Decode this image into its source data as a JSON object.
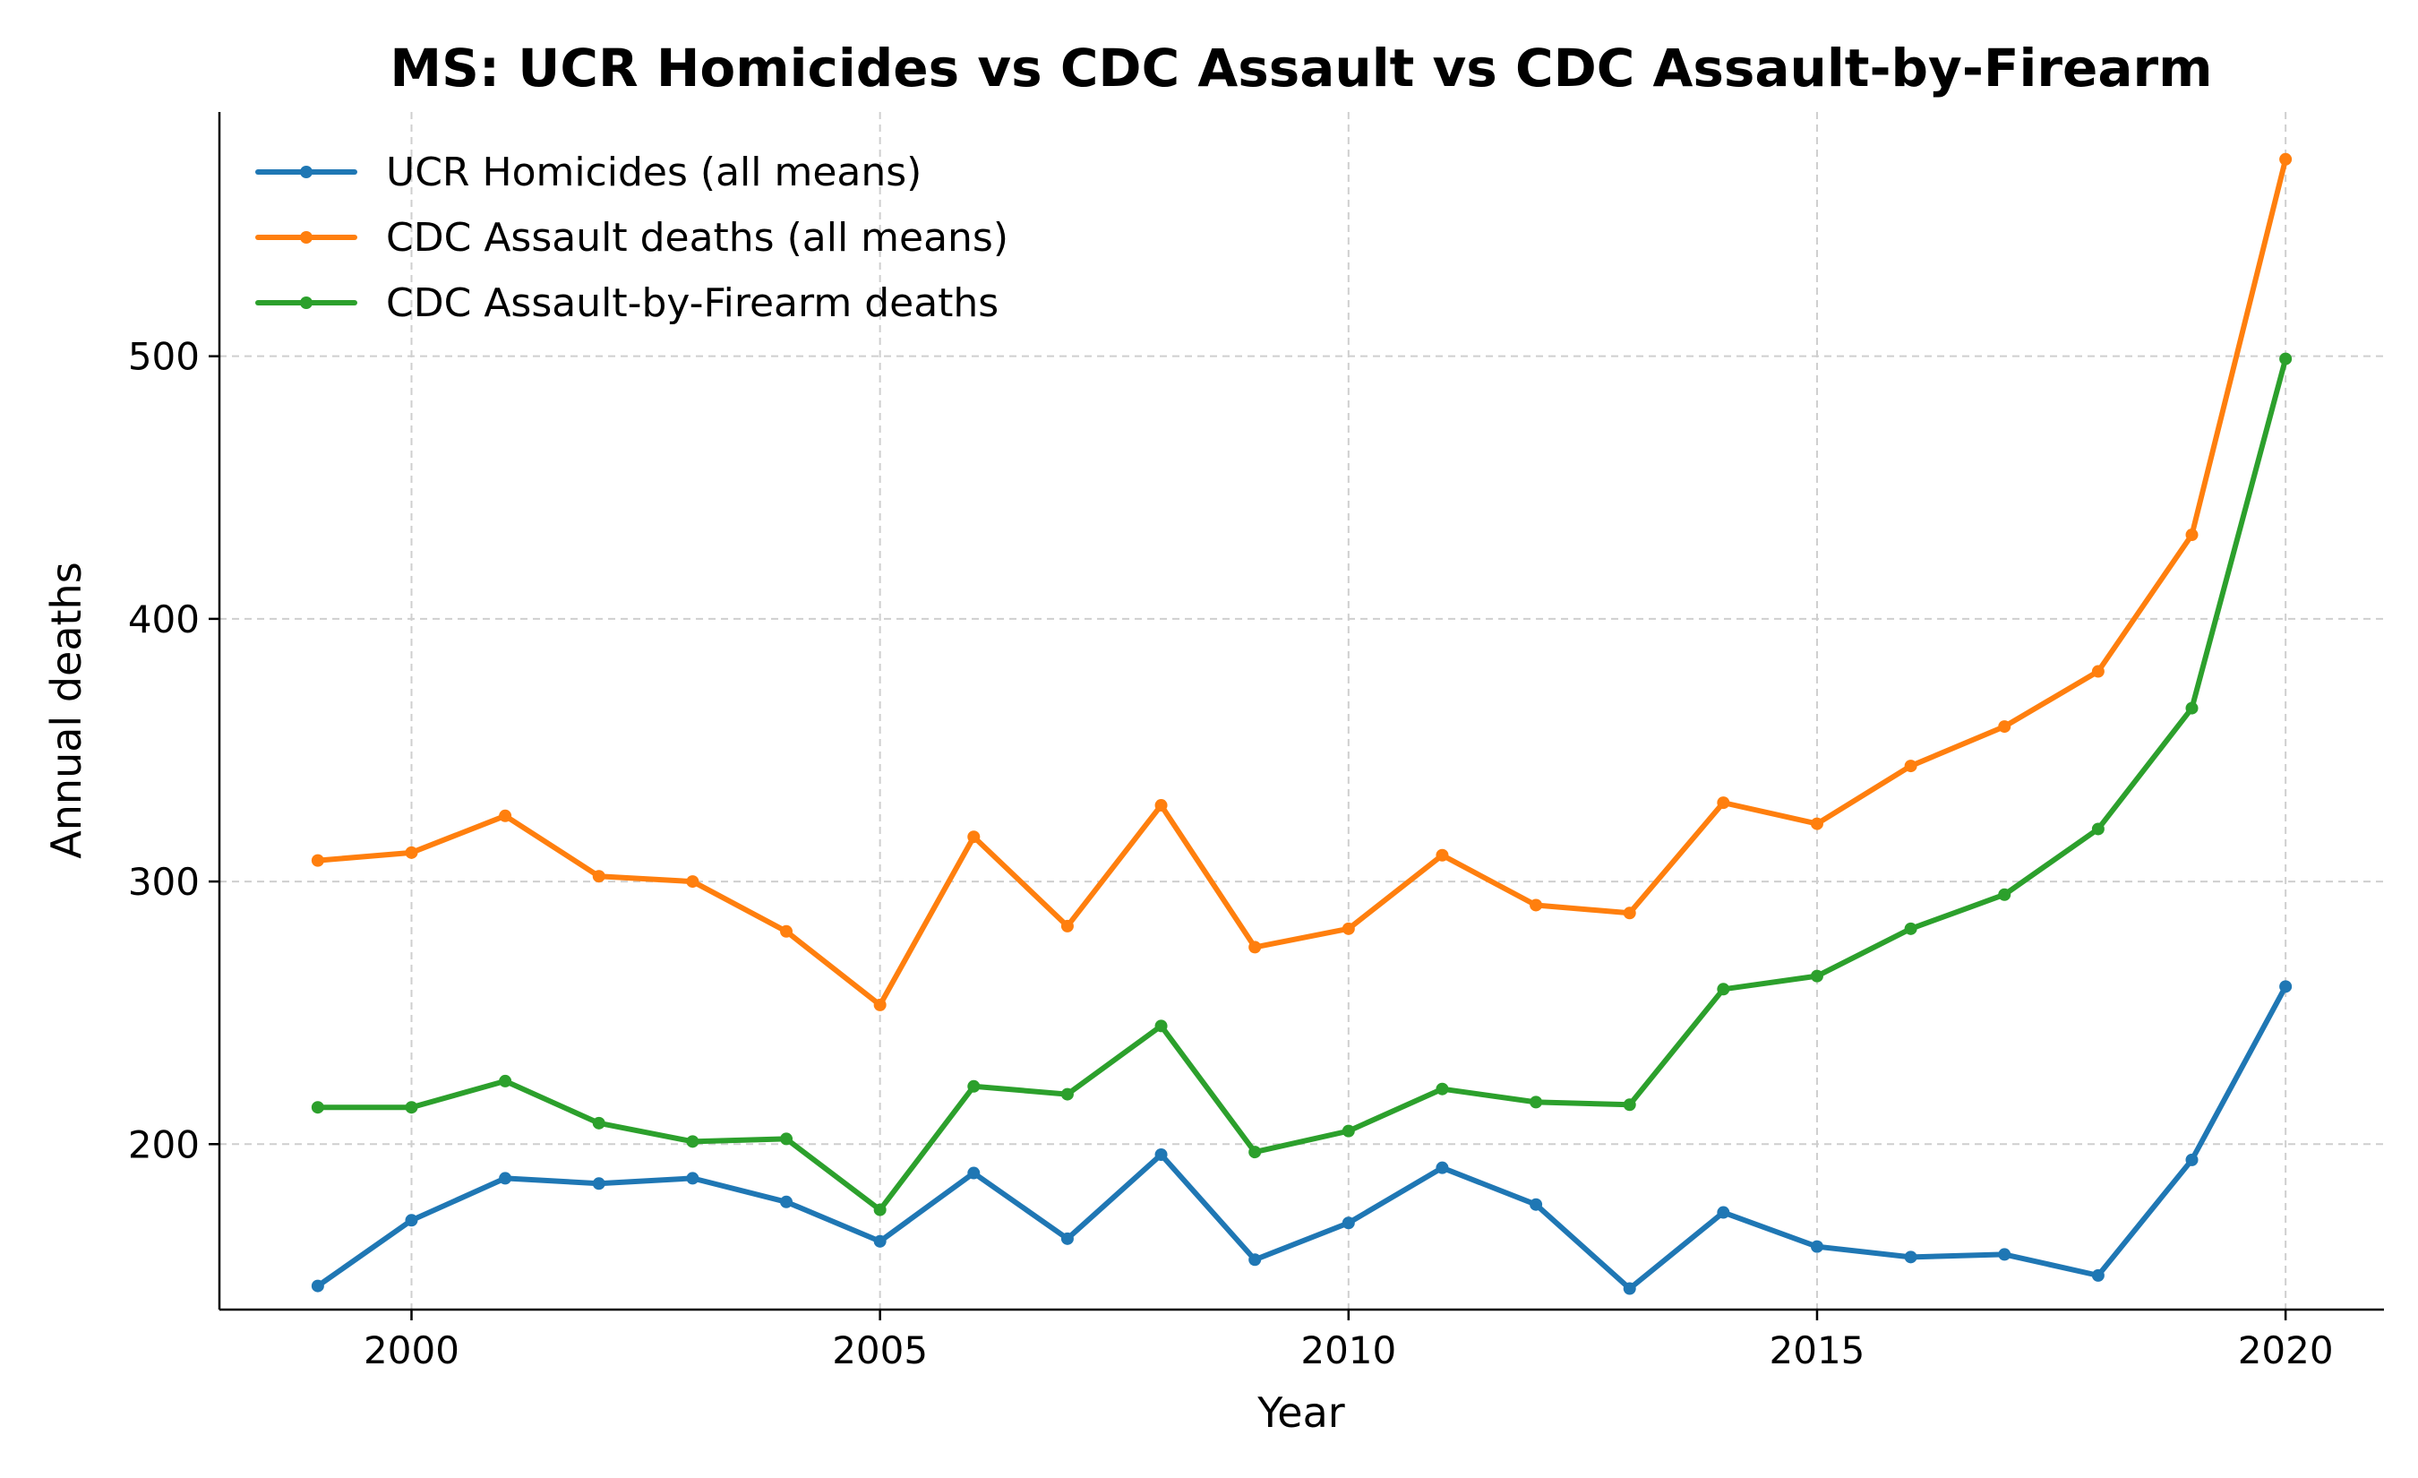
{
  "chart_data": {
    "type": "line",
    "title": "MS: UCR Homicides vs CDC Assault vs CDC Assault-by-Firearm",
    "xlabel": "Year",
    "ylabel": "Annual deaths",
    "xlim": [
      1997.95,
      2021.05
    ],
    "ylim": [
      137,
      593
    ],
    "xticks": [
      2000,
      2005,
      2010,
      2015,
      2020
    ],
    "yticks": [
      200,
      300,
      400,
      500
    ],
    "grid": true,
    "legend_position": "top-left",
    "x": [
      1999,
      2000,
      2001,
      2002,
      2003,
      2004,
      2005,
      2006,
      2007,
      2008,
      2009,
      2010,
      2011,
      2012,
      2013,
      2014,
      2015,
      2016,
      2017,
      2018,
      2019,
      2020
    ],
    "series": [
      {
        "name": "UCR Homicides (all means)",
        "color": "#1f77b4",
        "values": [
          146,
          171,
          187,
          185,
          187,
          178,
          163,
          189,
          164,
          196,
          156,
          170,
          191,
          177,
          145,
          174,
          161,
          157,
          158,
          150,
          194,
          260
        ]
      },
      {
        "name": "CDC Assault deaths (all means)",
        "color": "#ff7f0e",
        "values": [
          308,
          311,
          325,
          302,
          300,
          281,
          253,
          317,
          283,
          329,
          275,
          282,
          310,
          291,
          288,
          330,
          322,
          344,
          359,
          380,
          432,
          575
        ]
      },
      {
        "name": "CDC Assault-by-Firearm deaths",
        "color": "#2ca02c",
        "values": [
          214,
          214,
          224,
          208,
          201,
          202,
          175,
          222,
          219,
          245,
          197,
          205,
          221,
          216,
          215,
          259,
          264,
          282,
          295,
          320,
          366,
          499
        ]
      }
    ]
  }
}
